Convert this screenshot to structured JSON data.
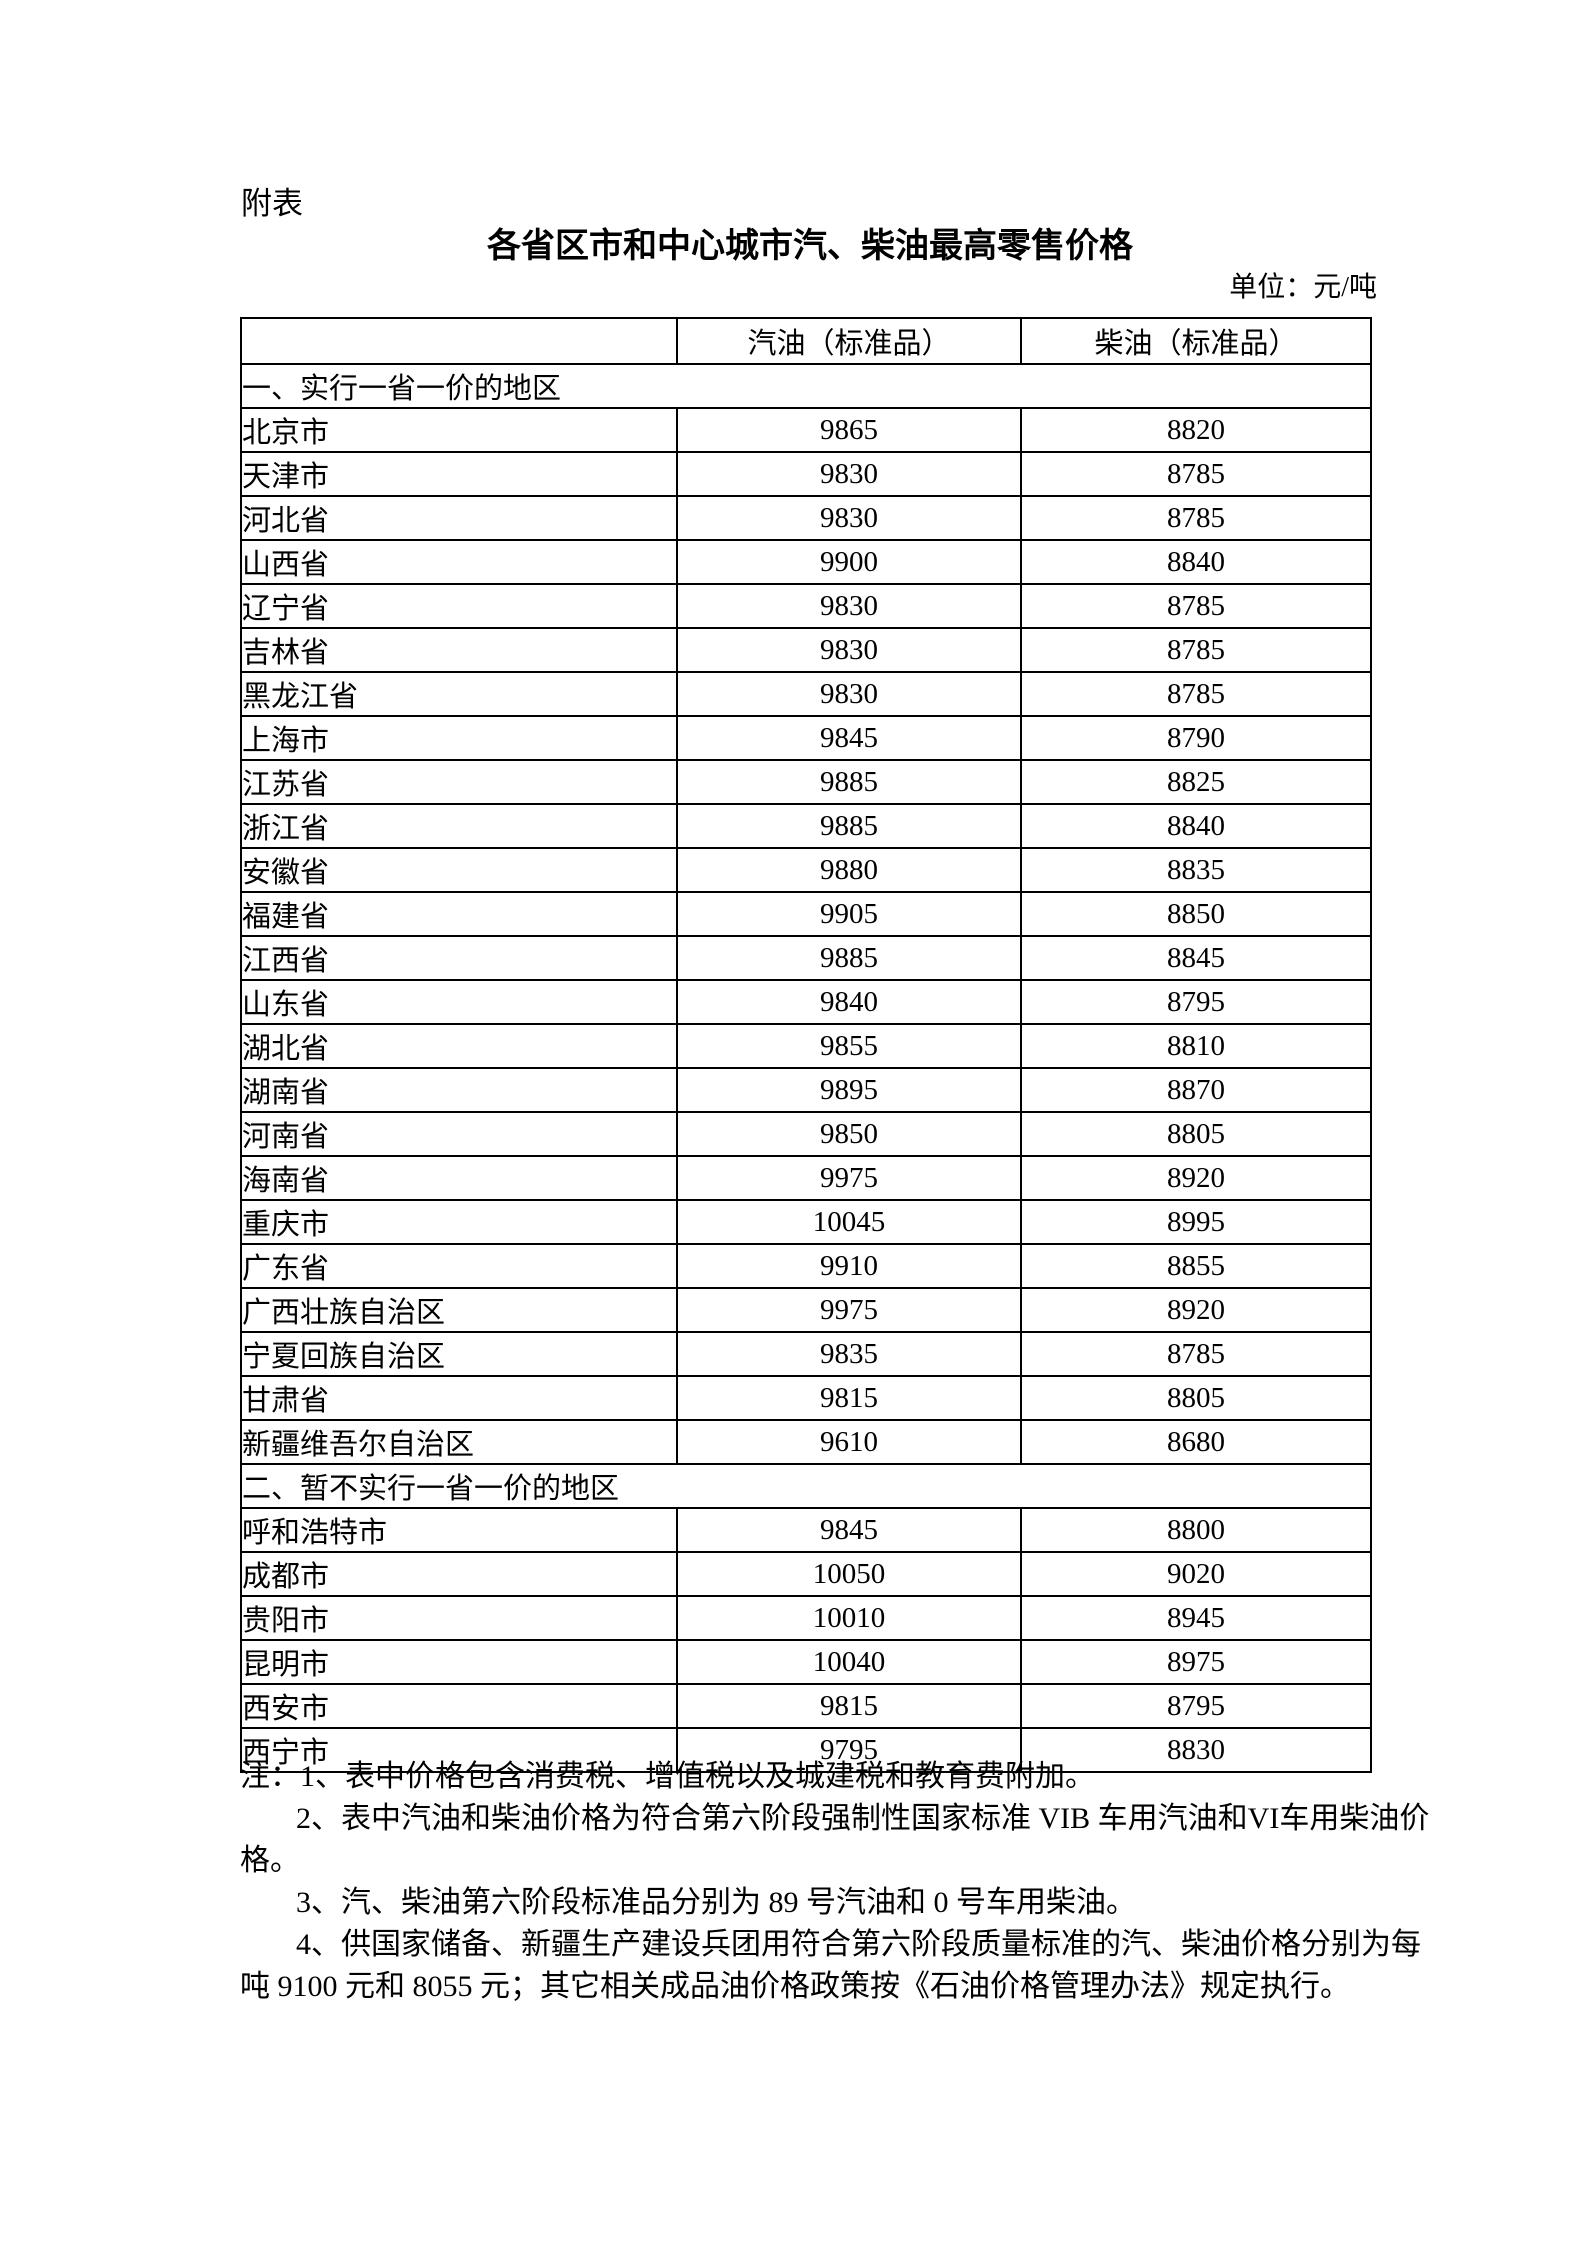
{
  "doc": {
    "appendix_label": "附表",
    "title": "各省区市和中心城市汽、柴油最高零售价格",
    "unit_label": "单位：元/吨"
  },
  "table": {
    "columns": [
      "",
      "汽油（标准品）",
      "柴油（标准品）"
    ],
    "sections": [
      {
        "label": "一、实行一省一价的地区",
        "rows": [
          {
            "region": "北京市",
            "gasoline": "9865",
            "diesel": "8820"
          },
          {
            "region": "天津市",
            "gasoline": "9830",
            "diesel": "8785"
          },
          {
            "region": "河北省",
            "gasoline": "9830",
            "diesel": "8785"
          },
          {
            "region": "山西省",
            "gasoline": "9900",
            "diesel": "8840"
          },
          {
            "region": "辽宁省",
            "gasoline": "9830",
            "diesel": "8785"
          },
          {
            "region": "吉林省",
            "gasoline": "9830",
            "diesel": "8785"
          },
          {
            "region": "黑龙江省",
            "gasoline": "9830",
            "diesel": "8785"
          },
          {
            "region": "上海市",
            "gasoline": "9845",
            "diesel": "8790"
          },
          {
            "region": "江苏省",
            "gasoline": "9885",
            "diesel": "8825"
          },
          {
            "region": "浙江省",
            "gasoline": "9885",
            "diesel": "8840"
          },
          {
            "region": "安徽省",
            "gasoline": "9880",
            "diesel": "8835"
          },
          {
            "region": "福建省",
            "gasoline": "9905",
            "diesel": "8850"
          },
          {
            "region": "江西省",
            "gasoline": "9885",
            "diesel": "8845"
          },
          {
            "region": "山东省",
            "gasoline": "9840",
            "diesel": "8795"
          },
          {
            "region": "湖北省",
            "gasoline": "9855",
            "diesel": "8810"
          },
          {
            "region": "湖南省",
            "gasoline": "9895",
            "diesel": "8870"
          },
          {
            "region": "河南省",
            "gasoline": "9850",
            "diesel": "8805"
          },
          {
            "region": "海南省",
            "gasoline": "9975",
            "diesel": "8920"
          },
          {
            "region": "重庆市",
            "gasoline": "10045",
            "diesel": "8995"
          },
          {
            "region": "广东省",
            "gasoline": "9910",
            "diesel": "8855"
          },
          {
            "region": "广西壮族自治区",
            "gasoline": "9975",
            "diesel": "8920"
          },
          {
            "region": "宁夏回族自治区",
            "gasoline": "9835",
            "diesel": "8785"
          },
          {
            "region": "甘肃省",
            "gasoline": "9815",
            "diesel": "8805"
          },
          {
            "region": "新疆维吾尔自治区",
            "gasoline": "9610",
            "diesel": "8680"
          }
        ]
      },
      {
        "label": "二、暂不实行一省一价的地区",
        "rows": [
          {
            "region": "呼和浩特市",
            "gasoline": "9845",
            "diesel": "8800"
          },
          {
            "region": "成都市",
            "gasoline": "10050",
            "diesel": "9020"
          },
          {
            "region": "贵阳市",
            "gasoline": "10010",
            "diesel": "8945"
          },
          {
            "region": "昆明市",
            "gasoline": "10040",
            "diesel": "8975"
          },
          {
            "region": "西安市",
            "gasoline": "9815",
            "diesel": "8795"
          },
          {
            "region": "西宁市",
            "gasoline": "9795",
            "diesel": "8830"
          }
        ]
      }
    ]
  },
  "notes": {
    "lines": [
      {
        "indent": "none",
        "text": "注：1、表中价格包含消费税、增值税以及城建税和教育费附加。"
      },
      {
        "indent": "para",
        "text": "2、表中汽油和柴油价格为符合第六阶段强制性国家标准 VIB 车用汽油和VI车用柴油价"
      },
      {
        "indent": "none",
        "text": "格。"
      },
      {
        "indent": "para",
        "text": "3、汽、柴油第六阶段标准品分别为 89 号汽油和 0 号车用柴油。"
      },
      {
        "indent": "para",
        "text": "4、供国家储备、新疆生产建设兵团用符合第六阶段质量标准的汽、柴油价格分别为每"
      },
      {
        "indent": "none",
        "text": "吨 9100 元和 8055 元；其它相关成品油价格政策按《石油价格管理办法》规定执行。"
      }
    ]
  }
}
